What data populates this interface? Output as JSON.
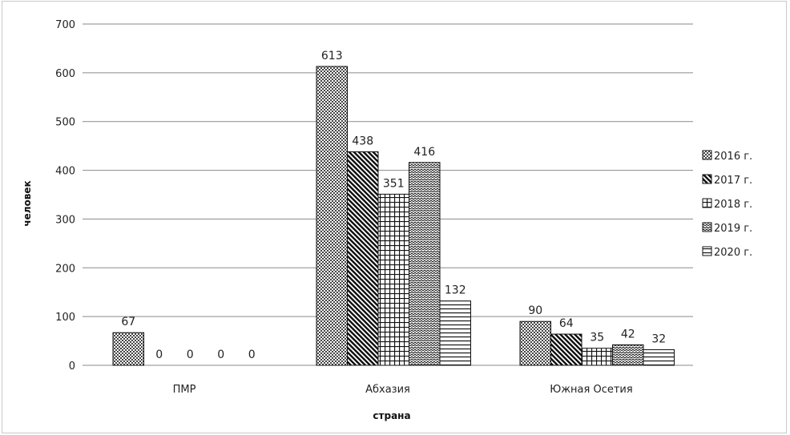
{
  "chart_data": {
    "type": "bar",
    "xlabel": "страна",
    "ylabel": "человек",
    "ylim": [
      0,
      700
    ],
    "yticks": [
      0,
      100,
      200,
      300,
      400,
      500,
      600,
      700
    ],
    "grid": true,
    "legend_position": "right",
    "categories": [
      "ПМР",
      "Абхазия",
      "Южная Осетия"
    ],
    "series": [
      {
        "name": "2016 г.",
        "values": [
          67,
          613,
          90
        ],
        "pattern": "dots"
      },
      {
        "name": "2017 г.",
        "values": [
          0,
          438,
          64
        ],
        "pattern": "diagonal"
      },
      {
        "name": "2018 г.",
        "values": [
          0,
          351,
          35
        ],
        "pattern": "grid"
      },
      {
        "name": "2019 г.",
        "values": [
          0,
          416,
          42
        ],
        "pattern": "wave"
      },
      {
        "name": "2020 г.",
        "values": [
          0,
          132,
          32
        ],
        "pattern": "horizontal"
      }
    ]
  }
}
